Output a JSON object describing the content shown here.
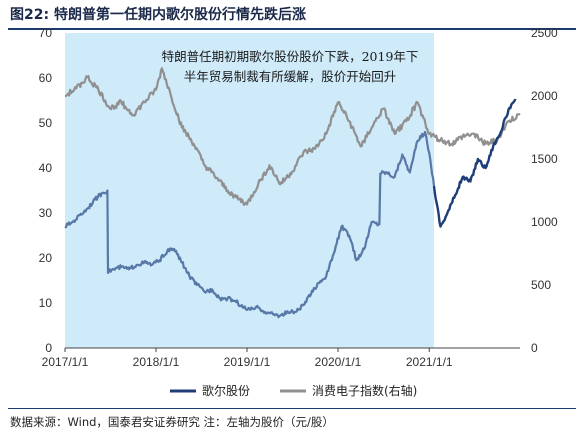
{
  "figure": {
    "title": "图22:  特朗普第一任期内歌尔股份行情先跌后涨",
    "source": "数据来源：Wind，国泰君安证券研究   注：左轴为股价（元/股）"
  },
  "chart_data": {
    "type": "line",
    "title": "",
    "xlabel": "",
    "ylabel": "",
    "x_ticks": [
      "2017/1/1",
      "2018/1/1",
      "2019/1/1",
      "2020/1/1",
      "2021/1/1"
    ],
    "x_range": [
      "2017-01-01",
      "2021-12-31"
    ],
    "y_left": {
      "range": [
        0,
        70
      ],
      "ticks": [
        0,
        10,
        20,
        30,
        40,
        50,
        60,
        70
      ]
    },
    "y_right": {
      "range": [
        0,
        2500
      ],
      "ticks": [
        0,
        500,
        1000,
        1500,
        2000,
        2500
      ]
    },
    "shaded_period": {
      "start": "2017-01-01",
      "end": "2021-01-20",
      "color": "#cfeaf9"
    },
    "annotation": {
      "lines": [
        "特朗普任期初期歌尔股份股价下跌，2019年下",
        "半年贸易制裁有所缓解，股价开始回升"
      ]
    },
    "legend": {
      "position": "bottom"
    },
    "series": [
      {
        "name": "歌尔股份",
        "axis": "left",
        "color": "#1f3e78",
        "color_light": "#5878a8",
        "x": [
          "2017-01-01",
          "2017-02-01",
          "2017-03-01",
          "2017-04-01",
          "2017-05-01",
          "2017-06-01",
          "2017-06-20",
          "2017-06-25",
          "2017-07-15",
          "2017-08-15",
          "2017-09-15",
          "2017-10-15",
          "2017-11-15",
          "2017-12-15",
          "2018-01-15",
          "2018-02-15",
          "2018-03-15",
          "2018-04-15",
          "2018-05-15",
          "2018-06-15",
          "2018-07-15",
          "2018-08-15",
          "2018-09-15",
          "2018-10-15",
          "2018-11-15",
          "2018-12-15",
          "2019-01-15",
          "2019-02-15",
          "2019-03-15",
          "2019-04-15",
          "2019-05-15",
          "2019-06-15",
          "2019-07-15",
          "2019-08-15",
          "2019-09-15",
          "2019-10-15",
          "2019-11-15",
          "2019-12-15",
          "2020-01-15",
          "2020-02-15",
          "2020-03-15",
          "2020-04-15",
          "2020-05-15",
          "2020-06-15",
          "2020-07-15",
          "2020-08-15",
          "2020-09-15",
          "2020-10-15",
          "2020-11-15",
          "2020-12-15",
          "2021-01-05",
          "2021-01-20",
          "2021-02-15",
          "2021-03-15",
          "2021-04-15",
          "2021-05-15",
          "2021-06-15",
          "2021-07-15",
          "2021-08-15",
          "2021-09-15",
          "2021-10-15",
          "2021-11-15",
          "2021-12-15"
        ],
        "values": [
          27,
          28,
          29.5,
          31,
          33,
          34.5,
          35,
          17,
          17.5,
          18,
          17.5,
          18.5,
          19,
          18.5,
          19.5,
          21.5,
          22,
          19,
          16,
          14,
          12.5,
          13,
          11,
          11,
          10.5,
          9,
          8.5,
          9,
          8,
          7.5,
          7.2,
          8,
          8,
          9.5,
          12,
          14.5,
          16,
          21,
          27,
          25,
          19.5,
          22,
          28,
          27.5,
          39,
          38,
          43,
          39,
          46,
          48,
          42,
          36,
          27,
          30,
          34,
          38,
          37,
          42,
          40,
          45,
          48,
          53,
          55
        ]
      },
      {
        "name": "消费电子指数(右轴)",
        "axis": "right",
        "color": "#909090",
        "x": [
          "2017-01-01",
          "2017-02-15",
          "2017-04-01",
          "2017-05-15",
          "2017-07-01",
          "2017-08-15",
          "2017-10-01",
          "2017-11-15",
          "2018-01-01",
          "2018-01-25",
          "2018-03-01",
          "2018-04-15",
          "2018-06-01",
          "2018-07-15",
          "2018-09-01",
          "2018-10-15",
          "2018-12-01",
          "2019-01-01",
          "2019-02-15",
          "2019-04-01",
          "2019-05-15",
          "2019-07-01",
          "2019-08-15",
          "2019-10-01",
          "2019-11-15",
          "2020-01-01",
          "2020-02-15",
          "2020-04-01",
          "2020-05-15",
          "2020-07-01",
          "2020-08-15",
          "2020-10-01",
          "2020-11-15",
          "2021-01-01",
          "2021-02-15",
          "2021-04-01",
          "2021-05-15",
          "2021-07-01",
          "2021-08-15",
          "2021-10-01",
          "2021-11-15",
          "2021-12-31"
        ],
        "values": [
          2000,
          2060,
          2150,
          2050,
          1900,
          1950,
          1850,
          1950,
          2050,
          2220,
          2010,
          1750,
          1620,
          1450,
          1350,
          1250,
          1180,
          1140,
          1300,
          1450,
          1300,
          1400,
          1550,
          1580,
          1700,
          1950,
          1800,
          1600,
          1750,
          1900,
          1700,
          1800,
          1950,
          1700,
          1650,
          1620,
          1680,
          1700,
          1620,
          1650,
          1800,
          1850
        ]
      }
    ]
  }
}
